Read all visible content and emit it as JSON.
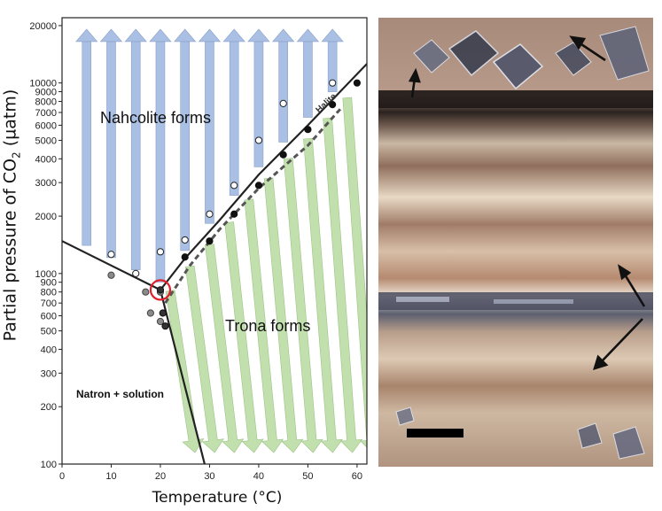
{
  "axes": {
    "ylabel_main": "Partial pressure of CO",
    "ylabel_sub": "2",
    "ylabel_unit": " (µatm)",
    "xlabel": "Temperature (°C)",
    "x_ticks": [
      "0",
      "10",
      "20",
      "30",
      "40",
      "50",
      "60"
    ],
    "y_ticks": [
      "100",
      "200",
      "300",
      "400",
      "500",
      "600",
      "700",
      "800",
      "900",
      "1000",
      "2000",
      "3000",
      "4000",
      "5000",
      "6000",
      "7000",
      "8000",
      "9000",
      "10000",
      "20000"
    ]
  },
  "regions": {
    "nahcolite": "Nahcolite forms",
    "trona": "Trona forms",
    "natron": "Natron + solution",
    "halite": "Halite"
  },
  "colors": {
    "nahcolite_arrows": "#a9bfe3",
    "trona_arrows": "#c2dfae",
    "boundary": "#222222",
    "triple_point_circle": "#e0202a"
  },
  "chart_data": {
    "type": "scatter",
    "title": "",
    "xlabel": "Temperature (°C)",
    "ylabel": "Partial pressure of CO2 (µatm)",
    "xlim": [
      0,
      62
    ],
    "ylim": [
      100,
      22000
    ],
    "y_scale": "log",
    "series": [
      {
        "marker": "open circle",
        "x": [
          10,
          15,
          20,
          25,
          30,
          35,
          40,
          45,
          55
        ],
        "y": [
          1260,
          1000,
          1300,
          1500,
          2050,
          2900,
          5000,
          7800,
          10000
        ]
      },
      {
        "marker": "filled black circle",
        "x": [
          25,
          30,
          35,
          40,
          45,
          50,
          55,
          60
        ],
        "y": [
          1220,
          1480,
          2050,
          2900,
          4200,
          5700,
          7700,
          10000
        ]
      },
      {
        "marker": "filled gray circle",
        "x": [
          10,
          17,
          18,
          20,
          20
        ],
        "y": [
          980,
          800,
          620,
          560,
          800
        ]
      },
      {
        "marker": "filled dark circle",
        "x": [
          20,
          20.5,
          21
        ],
        "y": [
          820,
          620,
          530
        ]
      }
    ],
    "boundaries": [
      {
        "name": "natron-nahcolite",
        "x": [
          0,
          20
        ],
        "y": [
          1480,
          820
        ]
      },
      {
        "name": "nahcolite-trona",
        "x": [
          20,
          25,
          32,
          40,
          50,
          62
        ],
        "y": [
          820,
          1200,
          1900,
          3300,
          6000,
          12600
        ]
      },
      {
        "name": "natron-trona",
        "x": [
          20,
          29
        ],
        "y": [
          820,
          100
        ]
      },
      {
        "name": "halite",
        "x": [
          21,
          26,
          32,
          40,
          50,
          57
        ],
        "y": [
          700,
          1100,
          1700,
          2800,
          4700,
          7500
        ]
      }
    ],
    "triple_point": {
      "x": 20,
      "y": 820
    }
  },
  "photo": {
    "arrows": 4,
    "has_scale_bar": true
  }
}
